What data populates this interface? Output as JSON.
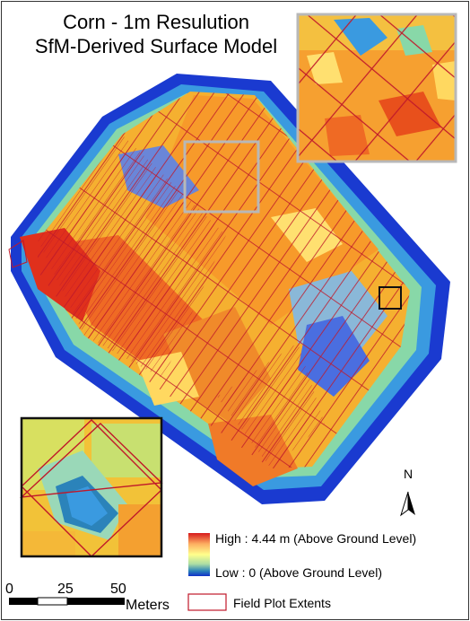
{
  "map": {
    "title_line1": "Corn - 1m Resulution",
    "title_line2": "SfM-Derived Surface Model"
  },
  "legend": {
    "high_label": "High : 4.44 m (Above Ground Level)",
    "low_label": "Low : 0 (Above Ground Level)",
    "plot_label": "Field Plot Extents",
    "colors": [
      "#d7191c",
      "#fdae61",
      "#ffff8c",
      "#abdda4",
      "#2b83ba",
      "#1030c8"
    ]
  },
  "scale": {
    "ticks": [
      "0",
      "25",
      "50"
    ],
    "unit": "Meters"
  },
  "north": {
    "label": "N"
  },
  "elevation": {
    "max_m": 4.44,
    "min_m": 0
  }
}
